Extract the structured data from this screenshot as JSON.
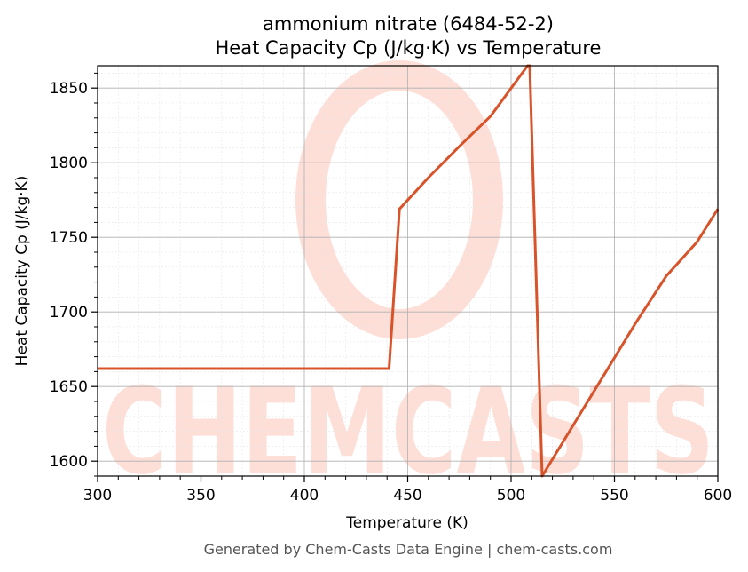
{
  "chart_data": {
    "type": "line",
    "title_line1": "ammonium nitrate (6484-52-2)",
    "title_line2": "Heat Capacity Cp (J/kg·K) vs Temperature",
    "xlabel": "Temperature (K)",
    "ylabel": "Heat Capacity Cp (J/kg·K)",
    "xlim": [
      300,
      600
    ],
    "ylim": [
      1590,
      1865
    ],
    "xticks": [
      300,
      350,
      400,
      450,
      500,
      550,
      600
    ],
    "yticks": [
      1600,
      1650,
      1700,
      1750,
      1800,
      1850
    ],
    "grid": true,
    "line_color": "#d9532a",
    "series": [
      {
        "x": [
          300,
          441,
          446,
          460,
          475,
          490,
          508,
          509,
          515,
          530,
          545,
          560,
          575,
          590,
          600
        ],
        "y": [
          1662,
          1662,
          1769,
          1790,
          1811,
          1831,
          1865,
          1865,
          1590,
          1624,
          1658,
          1692,
          1724,
          1747,
          1769
        ]
      }
    ]
  },
  "footer": "Generated by Chem-Casts Data Engine | chem-casts.com",
  "watermark": {
    "text": "CHEMCASTS",
    "color": "#fddcd4"
  }
}
